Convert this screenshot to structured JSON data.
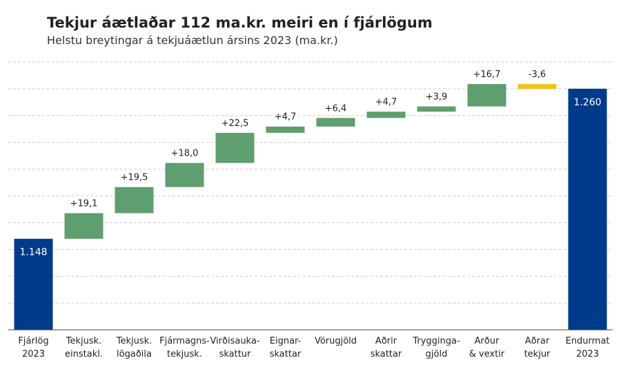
{
  "chart_data": {
    "type": "waterfall",
    "title": "Tekjur áætlaðar 112 ma.kr. meiri en í fjárlögum",
    "subtitle": "Helstu breytingar á tekjuáætlun ársins 2023 (ma.kr.)",
    "categories": [
      [
        "Fjárlög",
        "2023"
      ],
      [
        "Tekjusk.",
        "einstakl."
      ],
      [
        "Tekjusk.",
        "lögaðila"
      ],
      [
        "Fjármagns-",
        "tekjusk."
      ],
      [
        "Virðisauka-",
        "skattur"
      ],
      [
        "Eignar-",
        "skattar"
      ],
      [
        "Vörugjöld"
      ],
      [
        "Aðrir",
        "skattar"
      ],
      [
        "Trygginga-",
        "gjöld"
      ],
      [
        "Arður",
        "& vextir"
      ],
      [
        "Aðrar",
        "tekjur"
      ],
      [
        "Endurmat",
        "2023"
      ]
    ],
    "values": [
      1148,
      19.1,
      19.5,
      18.0,
      22.5,
      4.7,
      6.4,
      4.7,
      3.9,
      16.7,
      -3.6,
      1260
    ],
    "value_labels": [
      "1.148",
      "+19,1",
      "+19,5",
      "+18,0",
      "+22,5",
      "+4,7",
      "+6,4",
      "+4,7",
      "+3,9",
      "+16,7",
      "-3,6",
      "1.260"
    ],
    "kinds": [
      "total",
      "delta",
      "delta",
      "delta",
      "delta",
      "delta",
      "delta",
      "delta",
      "delta",
      "delta",
      "delta",
      "total"
    ],
    "total_color": "#003b8a",
    "increase_color": "#5f9e6e",
    "decrease_color": "#f2c21b",
    "ylim": [
      1080,
      1280
    ],
    "yticks": [
      1080,
      1100,
      1120,
      1140,
      1160,
      1180,
      1200,
      1220,
      1240,
      1260,
      1280
    ],
    "grid": true
  }
}
